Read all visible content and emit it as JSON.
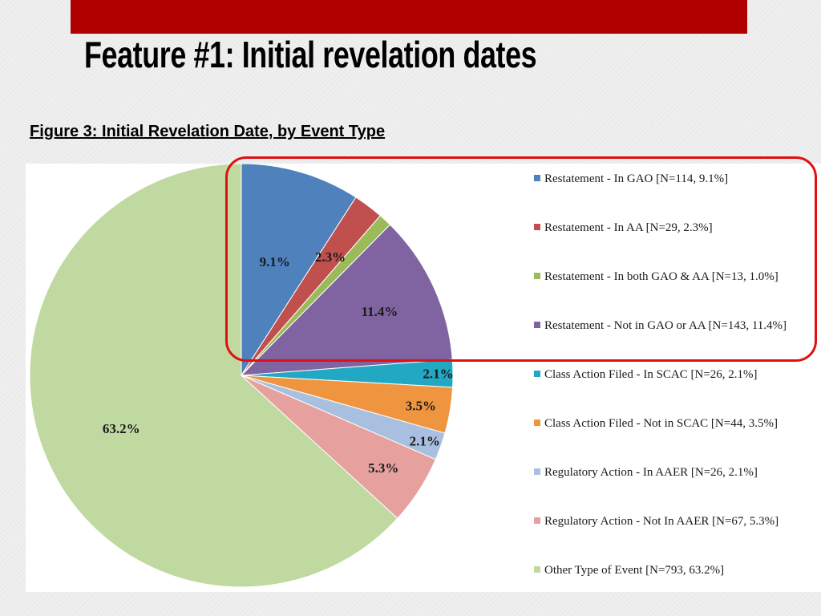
{
  "slide": {
    "title": "Feature #1: Initial revelation dates",
    "caption": "Figure 3: Initial Revelation Date, by Event Type",
    "top_bar_color": "#b00000",
    "highlight_color": "#e01010"
  },
  "chart_data": {
    "type": "pie",
    "title": "Figure 3: Initial Revelation Date, by Event Type",
    "start_angle": "12 o'clock, clockwise",
    "slices": [
      {
        "legend": "Restatement - In GAO [N=114, 9.1%]",
        "label": "9.1%",
        "n": 114,
        "value": 9.1,
        "color": "#4f81bd"
      },
      {
        "legend": "Restatement - In AA [N=29, 2.3%]",
        "label": "2.3%",
        "n": 29,
        "value": 2.3,
        "color": "#c0504d"
      },
      {
        "legend": "Restatement - In both GAO & AA [N=13, 1.0%]",
        "label": "",
        "n": 13,
        "value": 1.0,
        "color": "#9bbb59"
      },
      {
        "legend": "Restatement - Not in GAO or AA [N=143, 11.4%]",
        "label": "11.4%",
        "n": 143,
        "value": 11.4,
        "color": "#8064a2"
      },
      {
        "legend": "Class Action Filed - In SCAC [N=26, 2.1%]",
        "label": "2.1%",
        "n": 26,
        "value": 2.1,
        "color": "#23a8c4"
      },
      {
        "legend": "Class Action Filed - Not in SCAC [N=44, 3.5%]",
        "label": "3.5%",
        "n": 44,
        "value": 3.5,
        "color": "#f0953f"
      },
      {
        "legend": "Regulatory Action - In AAER [N=26, 2.1%]",
        "label": "2.1%",
        "n": 26,
        "value": 2.1,
        "color": "#a8bfe0"
      },
      {
        "legend": "Regulatory Action - Not In AAER [N=67, 5.3%]",
        "label": "5.3%",
        "n": 67,
        "value": 5.3,
        "color": "#e6a19f"
      },
      {
        "legend": "Other Type of Event [N=793, 63.2%]",
        "label": "63.2%",
        "n": 793,
        "value": 63.2,
        "color": "#c0d9a1"
      }
    ],
    "legend_position": "right",
    "highlighted_slices": [
      "Restatement - In GAO",
      "Restatement - In AA",
      "Restatement - In both GAO & AA",
      "Restatement - Not in GAO or AA"
    ]
  }
}
